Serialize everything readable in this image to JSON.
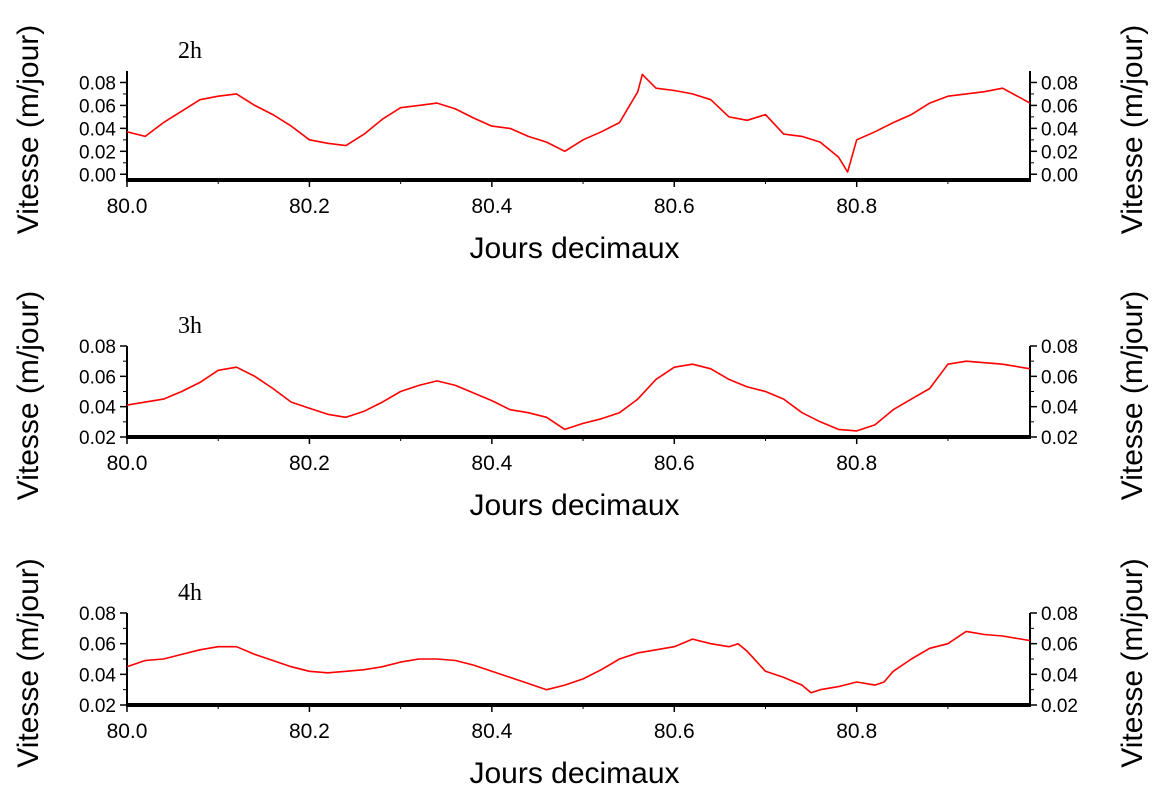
{
  "chart_data": [
    {
      "type": "line",
      "panel_label": "2h",
      "xlabel": "Jours decimaux",
      "ylabel": "Vitesse (m/jour)",
      "ylabel_right": "Vitesse (m/jour)",
      "xlim": [
        80.0,
        80.99
      ],
      "ylim": [
        -0.005,
        0.09
      ],
      "xticks": [
        "80.0",
        "80.2",
        "80.4",
        "80.6",
        "80.8"
      ],
      "yticks": [
        "0.00",
        "0.02",
        "0.04",
        "0.06",
        "0.08"
      ],
      "grid": false,
      "color": "#ff0000",
      "series": [
        {
          "x": [
            80.0,
            80.02,
            80.04,
            80.06,
            80.08,
            80.1,
            80.12,
            80.14,
            80.16,
            80.18,
            80.2,
            80.22,
            80.24,
            80.26,
            80.28,
            80.3,
            80.32,
            80.34,
            80.36,
            80.38,
            80.4,
            80.42,
            80.44,
            80.46,
            80.48,
            80.5,
            80.52,
            80.54,
            80.56,
            80.565,
            80.58,
            80.6,
            80.62,
            80.64,
            80.66,
            80.68,
            80.7,
            80.72,
            80.74,
            80.76,
            80.78,
            80.79,
            80.8,
            80.82,
            80.84,
            80.86,
            80.88,
            80.9,
            80.92,
            80.94,
            80.96,
            80.99
          ],
          "y": [
            0.037,
            0.033,
            0.045,
            0.055,
            0.065,
            0.068,
            0.07,
            0.06,
            0.052,
            0.042,
            0.03,
            0.027,
            0.025,
            0.035,
            0.048,
            0.058,
            0.06,
            0.062,
            0.057,
            0.049,
            0.042,
            0.04,
            0.033,
            0.028,
            0.02,
            0.03,
            0.037,
            0.045,
            0.072,
            0.087,
            0.075,
            0.073,
            0.07,
            0.065,
            0.05,
            0.047,
            0.052,
            0.035,
            0.033,
            0.028,
            0.015,
            0.002,
            0.03,
            0.037,
            0.045,
            0.052,
            0.062,
            0.068,
            0.07,
            0.072,
            0.075,
            0.062
          ]
        }
      ]
    },
    {
      "type": "line",
      "panel_label": "3h",
      "xlabel": "Jours decimaux",
      "ylabel": "Vitesse (m/jour)",
      "ylabel_right": "Vitesse (m/jour)",
      "xlim": [
        80.0,
        80.99
      ],
      "ylim": [
        0.02,
        0.08
      ],
      "xticks": [
        "80.0",
        "80.2",
        "80.4",
        "80.6",
        "80.8"
      ],
      "yticks": [
        "0.02",
        "0.04",
        "0.06",
        "0.08"
      ],
      "grid": false,
      "color": "#ff0000",
      "series": [
        {
          "x": [
            80.0,
            80.02,
            80.04,
            80.06,
            80.08,
            80.1,
            80.12,
            80.14,
            80.16,
            80.18,
            80.2,
            80.22,
            80.24,
            80.26,
            80.28,
            80.3,
            80.32,
            80.34,
            80.36,
            80.38,
            80.4,
            80.42,
            80.44,
            80.46,
            80.48,
            80.5,
            80.52,
            80.54,
            80.56,
            80.58,
            80.6,
            80.62,
            80.64,
            80.66,
            80.68,
            80.7,
            80.72,
            80.74,
            80.76,
            80.78,
            80.8,
            80.82,
            80.84,
            80.86,
            80.88,
            80.9,
            80.92,
            80.94,
            80.96,
            80.99
          ],
          "y": [
            0.041,
            0.043,
            0.045,
            0.05,
            0.056,
            0.064,
            0.066,
            0.06,
            0.052,
            0.043,
            0.039,
            0.035,
            0.033,
            0.037,
            0.043,
            0.05,
            0.054,
            0.057,
            0.054,
            0.049,
            0.044,
            0.038,
            0.036,
            0.033,
            0.025,
            0.029,
            0.032,
            0.036,
            0.045,
            0.058,
            0.066,
            0.068,
            0.065,
            0.058,
            0.053,
            0.05,
            0.045,
            0.036,
            0.03,
            0.025,
            0.024,
            0.028,
            0.038,
            0.045,
            0.052,
            0.068,
            0.07,
            0.069,
            0.068,
            0.065
          ]
        }
      ]
    },
    {
      "type": "line",
      "panel_label": "4h",
      "xlabel": "Jours decimaux",
      "ylabel": "Vitesse (m/jour)",
      "ylabel_right": "Vitesse (m/jour)",
      "xlim": [
        80.0,
        80.99
      ],
      "ylim": [
        0.02,
        0.08
      ],
      "xticks": [
        "80.0",
        "80.2",
        "80.4",
        "80.6",
        "80.8"
      ],
      "yticks": [
        "0.02",
        "0.04",
        "0.06",
        "0.08"
      ],
      "grid": false,
      "color": "#ff0000",
      "series": [
        {
          "x": [
            80.0,
            80.02,
            80.04,
            80.06,
            80.08,
            80.1,
            80.12,
            80.14,
            80.16,
            80.18,
            80.2,
            80.22,
            80.24,
            80.26,
            80.28,
            80.3,
            80.32,
            80.34,
            80.36,
            80.38,
            80.4,
            80.42,
            80.44,
            80.46,
            80.48,
            80.5,
            80.52,
            80.54,
            80.56,
            80.58,
            80.6,
            80.62,
            80.64,
            80.66,
            80.67,
            80.68,
            80.7,
            80.72,
            80.74,
            80.75,
            80.76,
            80.78,
            80.8,
            80.82,
            80.83,
            80.84,
            80.86,
            80.88,
            80.9,
            80.92,
            80.94,
            80.96,
            80.99
          ],
          "y": [
            0.045,
            0.049,
            0.05,
            0.053,
            0.056,
            0.058,
            0.058,
            0.053,
            0.049,
            0.045,
            0.042,
            0.041,
            0.042,
            0.043,
            0.045,
            0.048,
            0.05,
            0.05,
            0.049,
            0.046,
            0.042,
            0.038,
            0.034,
            0.03,
            0.033,
            0.037,
            0.043,
            0.05,
            0.054,
            0.056,
            0.058,
            0.063,
            0.06,
            0.058,
            0.06,
            0.055,
            0.042,
            0.038,
            0.033,
            0.028,
            0.03,
            0.032,
            0.035,
            0.033,
            0.035,
            0.042,
            0.05,
            0.057,
            0.06,
            0.068,
            0.066,
            0.065,
            0.062
          ]
        }
      ]
    }
  ]
}
